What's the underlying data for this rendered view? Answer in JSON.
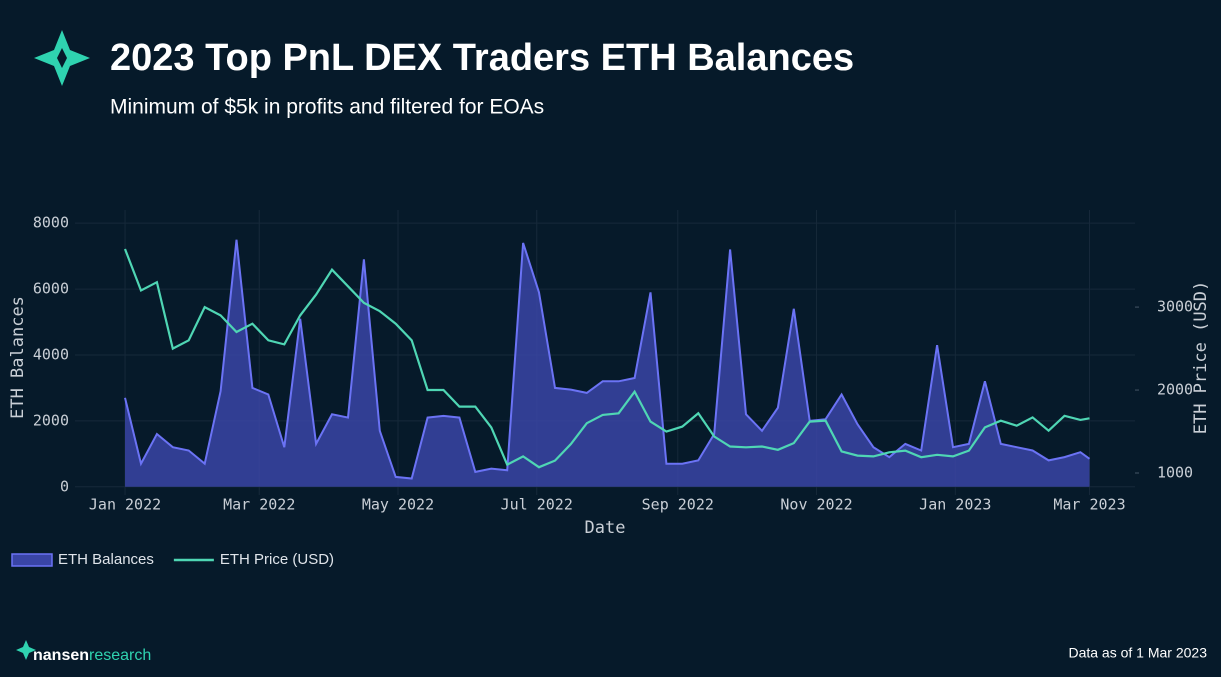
{
  "header": {
    "title": "2023 Top PnL DEX Traders ETH Balances",
    "subtitle": "Minimum of $5k in profits and filtered for EOAs"
  },
  "footer": {
    "logo": [
      "nansen",
      "research"
    ],
    "note": "Data as of 1 Mar 2023"
  },
  "chart_data": {
    "type": "line",
    "x": [
      "2022-01-01",
      "2022-01-08",
      "2022-01-15",
      "2022-01-22",
      "2022-01-29",
      "2022-02-05",
      "2022-02-12",
      "2022-02-19",
      "2022-02-26",
      "2022-03-05",
      "2022-03-12",
      "2022-03-19",
      "2022-03-26",
      "2022-04-02",
      "2022-04-09",
      "2022-04-16",
      "2022-04-23",
      "2022-04-30",
      "2022-05-07",
      "2022-05-14",
      "2022-05-21",
      "2022-05-28",
      "2022-06-04",
      "2022-06-11",
      "2022-06-18",
      "2022-06-25",
      "2022-07-02",
      "2022-07-09",
      "2022-07-16",
      "2022-07-23",
      "2022-07-30",
      "2022-08-06",
      "2022-08-13",
      "2022-08-20",
      "2022-08-27",
      "2022-09-03",
      "2022-09-10",
      "2022-09-17",
      "2022-09-24",
      "2022-10-01",
      "2022-10-08",
      "2022-10-15",
      "2022-10-22",
      "2022-10-29",
      "2022-11-05",
      "2022-11-12",
      "2022-11-19",
      "2022-11-26",
      "2022-12-03",
      "2022-12-10",
      "2022-12-17",
      "2022-12-24",
      "2022-12-31",
      "2023-01-07",
      "2023-01-14",
      "2023-01-21",
      "2023-01-28",
      "2023-02-04",
      "2023-02-11",
      "2023-02-18",
      "2023-02-25",
      "2023-03-01"
    ],
    "series": [
      {
        "name": "ETH Balances",
        "type": "area",
        "color": "#6b73f5",
        "fill": "#3a45a6",
        "values": [
          2700,
          700,
          1600,
          1200,
          1100,
          700,
          2900,
          7500,
          3000,
          2800,
          1200,
          5100,
          1300,
          2200,
          2100,
          6900,
          1700,
          300,
          250,
          2100,
          2150,
          2100,
          450,
          550,
          500,
          7400,
          5900,
          3000,
          2950,
          2850,
          3200,
          3200,
          3300,
          5900,
          700,
          700,
          800,
          1600,
          7200,
          2200,
          1700,
          2400,
          5400,
          2000,
          2050,
          2800,
          1900,
          1200,
          900,
          1300,
          1100,
          4300,
          1200,
          1300,
          3200,
          1300,
          1200,
          1100,
          800,
          900,
          1050,
          850
        ]
      },
      {
        "name": "ETH Price (USD)",
        "type": "line",
        "axis": "y2",
        "color": "#4fd6b4",
        "values": [
          3700,
          3200,
          3300,
          2500,
          2600,
          3000,
          2900,
          2700,
          2800,
          2600,
          2550,
          2900,
          3150,
          3450,
          3250,
          3050,
          2950,
          2800,
          2600,
          2000,
          2000,
          1800,
          1800,
          1550,
          1100,
          1200,
          1070,
          1150,
          1350,
          1600,
          1700,
          1720,
          1980,
          1620,
          1500,
          1560,
          1720,
          1440,
          1320,
          1310,
          1320,
          1280,
          1360,
          1620,
          1630,
          1260,
          1210,
          1200,
          1250,
          1270,
          1190,
          1220,
          1200,
          1270,
          1550,
          1630,
          1570,
          1670,
          1510,
          1690,
          1640,
          1660
        ]
      }
    ],
    "xlabel": "Date",
    "ylabel": "ETH Balances",
    "y2label": "ETH Price (USD)",
    "xlim": [
      "2021-12-10",
      "2023-03-21"
    ],
    "xticks": [
      {
        "value": "2022-01-01",
        "label": "Jan 2022"
      },
      {
        "value": "2022-03-01",
        "label": "Mar 2022"
      },
      {
        "value": "2022-05-01",
        "label": "May 2022"
      },
      {
        "value": "2022-07-01",
        "label": "Jul 2022"
      },
      {
        "value": "2022-09-01",
        "label": "Sep 2022"
      },
      {
        "value": "2022-11-01",
        "label": "Nov 2022"
      },
      {
        "value": "2023-01-01",
        "label": "Jan 2023"
      },
      {
        "value": "2023-03-01",
        "label": "Mar 2023"
      }
    ],
    "ylim": [
      -250,
      8400
    ],
    "yticks": [
      0,
      2000,
      4000,
      6000,
      8000
    ],
    "y2lim": [
      735,
      4170
    ],
    "y2ticks": [
      1000,
      2000,
      3000
    ],
    "grid": true,
    "legend": "bottom-left"
  }
}
